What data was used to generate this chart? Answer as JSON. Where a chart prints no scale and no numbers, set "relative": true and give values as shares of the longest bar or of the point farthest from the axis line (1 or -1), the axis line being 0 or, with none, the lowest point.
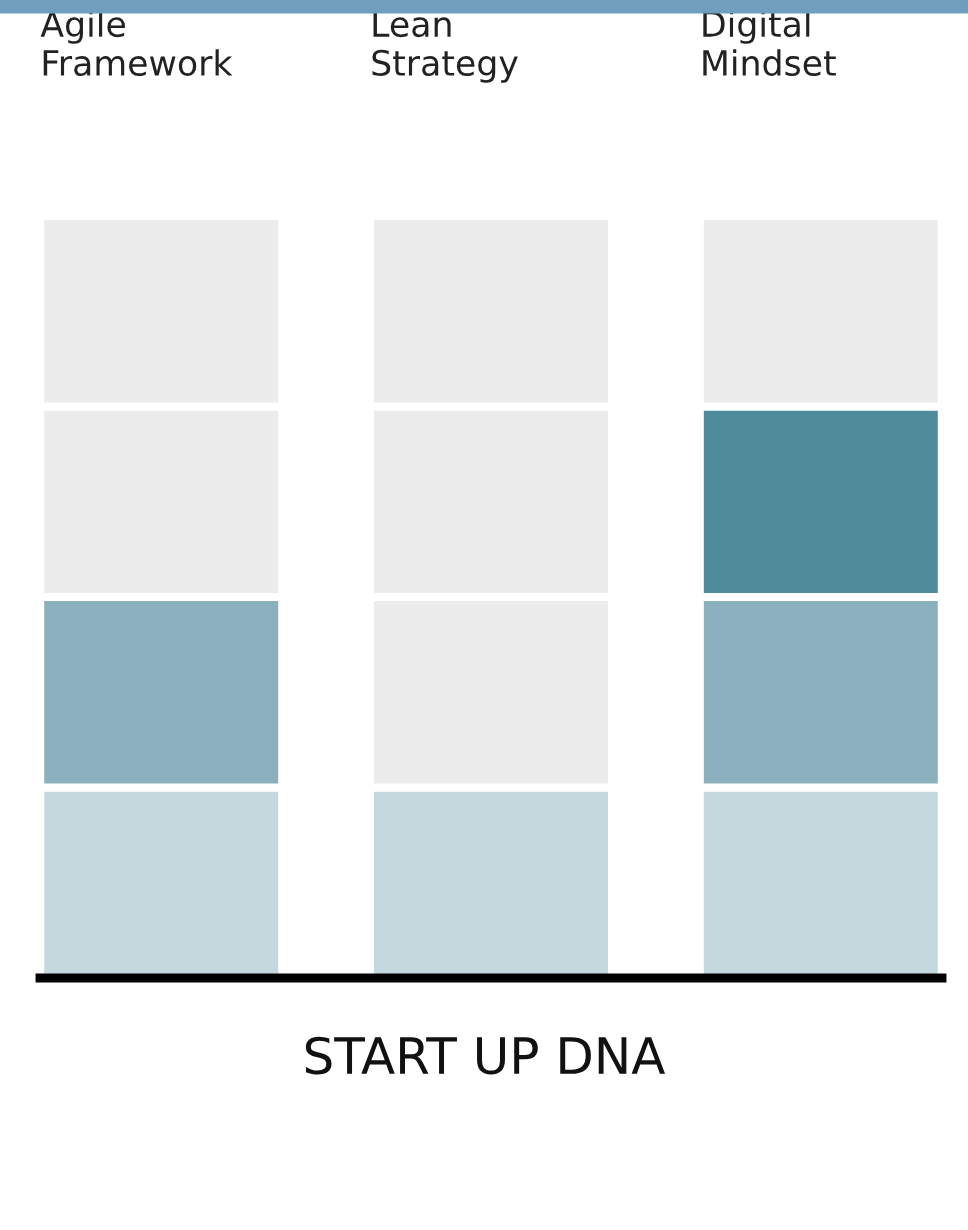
{
  "chart_data": {
    "type": "bar",
    "title": "START UP DNA",
    "relative": true,
    "stacked": true,
    "categories": [
      "Agile\nFramework",
      "Lean\nStrategy",
      "Digital\nMindset"
    ],
    "series": [
      {
        "colors": [
          "#c4d9de",
          "#c4d9de",
          "#c4d9de"
        ],
        "values": [
          0.25,
          0.25,
          0.25
        ]
      },
      {
        "colors": [
          "#8bb0bd",
          "#ececec",
          "#8bb0bd"
        ],
        "values": [
          0.25,
          0.25,
          0.25
        ]
      },
      {
        "colors": [
          "#ececec",
          "#ececec",
          "#4f8b9b"
        ],
        "values": [
          0.25,
          0.25,
          0.25
        ]
      },
      {
        "colors": [
          "#ececec",
          "#ececec",
          "#ececec"
        ],
        "values": [
          0.25,
          0.25,
          0.25
        ]
      }
    ]
  }
}
